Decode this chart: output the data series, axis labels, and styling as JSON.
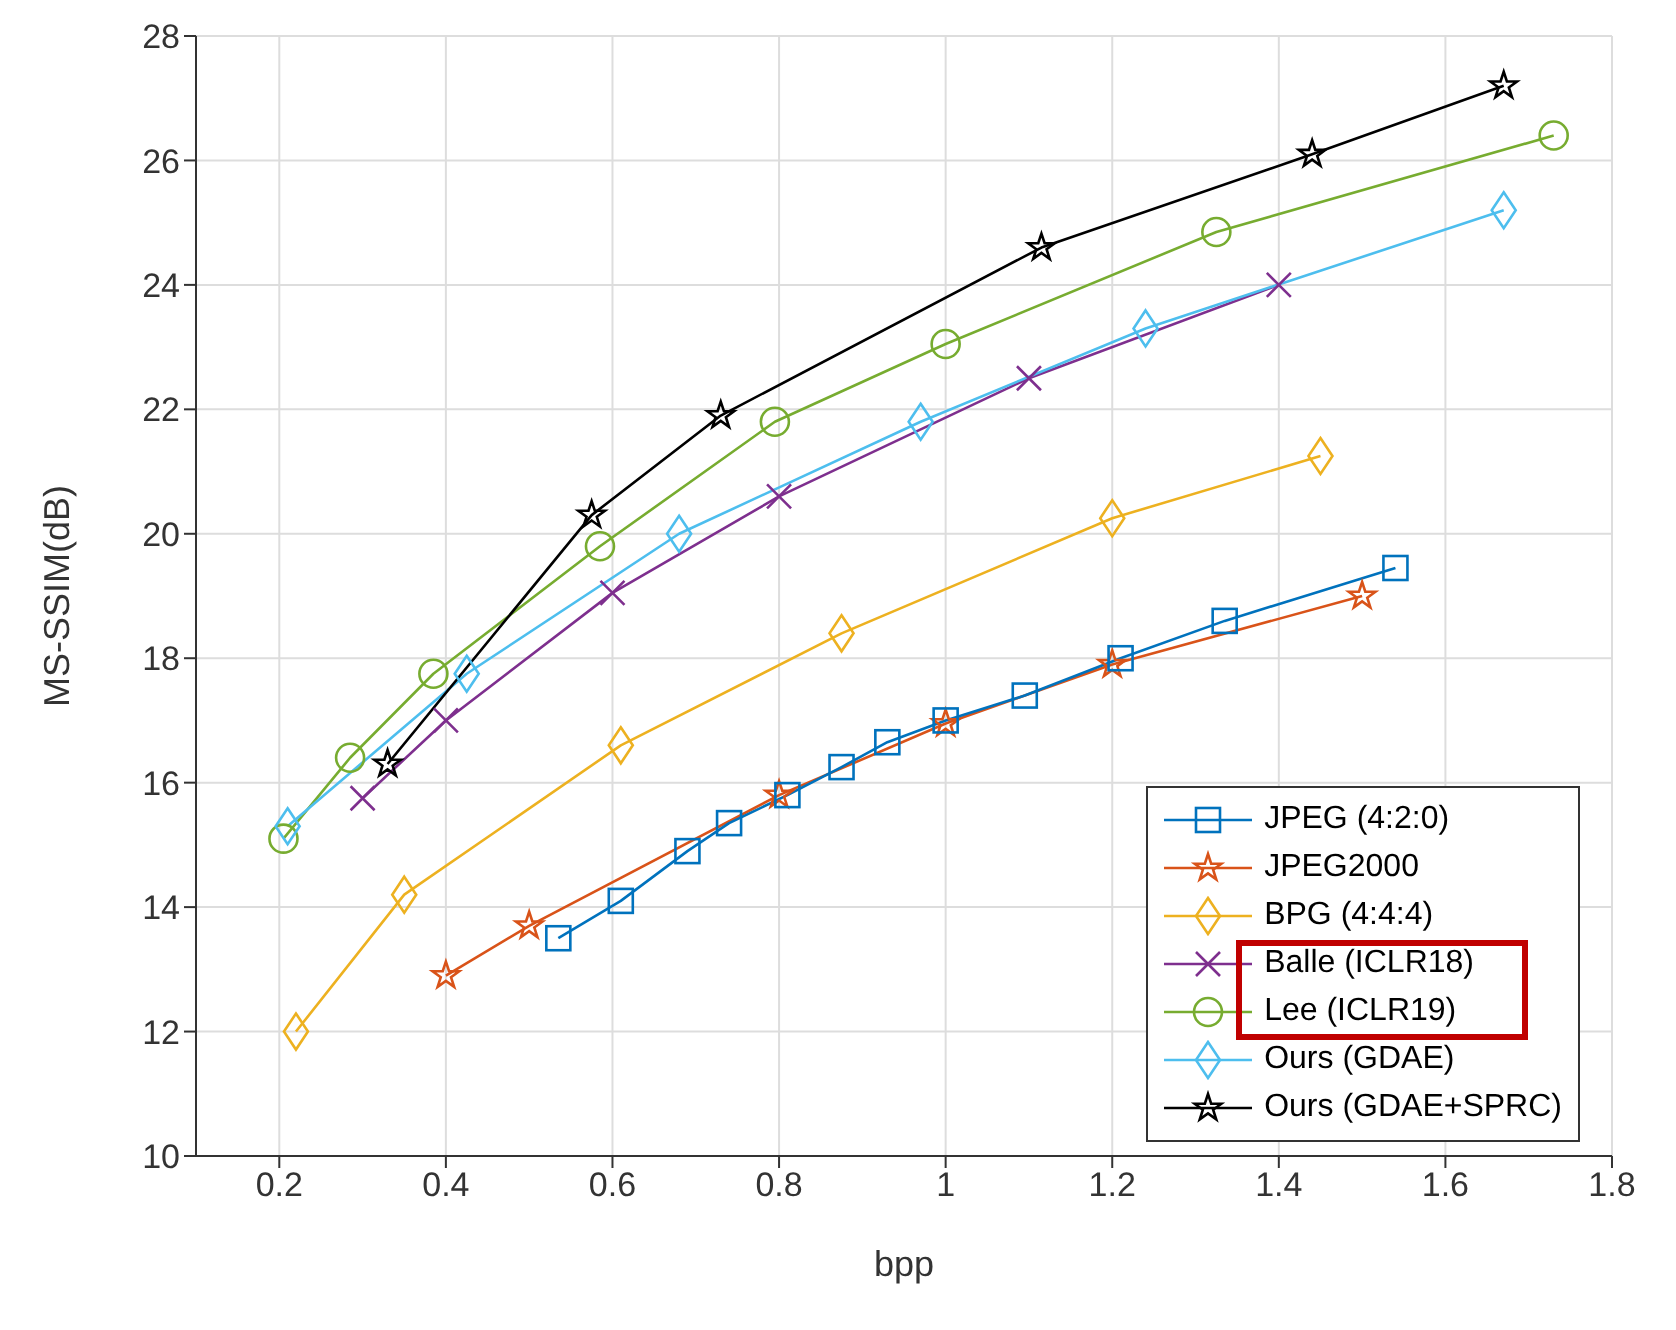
{
  "chart_data": {
    "type": "line",
    "xlabel": "bpp",
    "ylabel": "MS-SSIM(dB)",
    "xlim": [
      0.1,
      1.8
    ],
    "xticks": [
      0.2,
      0.4,
      0.6,
      0.8,
      1,
      1.2,
      1.4,
      1.6,
      1.8
    ],
    "ylim": [
      10,
      28
    ],
    "yticks": [
      10,
      12,
      14,
      16,
      18,
      20,
      22,
      24,
      26,
      28
    ],
    "grid": true,
    "legend": "bottom right",
    "line_style": "solid",
    "series": [
      {
        "name": "JPEG (4:2:0)",
        "color": "#0072bd",
        "marker": "square",
        "x": [
          0.535,
          0.61,
          0.69,
          0.74,
          0.81,
          0.875,
          0.93,
          1.0,
          1.095,
          1.21,
          1.335,
          1.54
        ],
        "values": [
          13.5,
          14.1,
          14.9,
          15.35,
          15.8,
          16.25,
          16.65,
          17.0,
          17.4,
          18.0,
          18.6,
          19.45
        ]
      },
      {
        "name": "JPEG2000",
        "color": "#d95319",
        "marker": "star",
        "x": [
          0.4,
          0.5,
          0.8,
          1.0,
          1.2,
          1.5
        ],
        "values": [
          12.9,
          13.7,
          15.8,
          16.95,
          17.9,
          19.0
        ]
      },
      {
        "name": "BPG (4:4:4)",
        "color": "#edb120",
        "marker": "diamond",
        "x": [
          0.22,
          0.35,
          0.61,
          0.875,
          1.2,
          1.45
        ],
        "values": [
          12.0,
          14.2,
          16.6,
          18.4,
          20.25,
          21.25
        ]
      },
      {
        "name": "Balle (ICLR18)",
        "color": "#7e2f8e",
        "marker": "cross",
        "x": [
          0.3,
          0.4,
          0.6,
          0.8,
          1.1,
          1.4
        ],
        "values": [
          15.75,
          17.0,
          19.05,
          20.6,
          22.5,
          24.0
        ]
      },
      {
        "name": "Lee (ICLR19)",
        "color": "#77ac30",
        "marker": "circle",
        "x": [
          0.205,
          0.285,
          0.385,
          0.585,
          0.795,
          1.0,
          1.325,
          1.73
        ],
        "values": [
          15.1,
          16.4,
          17.75,
          19.8,
          21.8,
          23.05,
          24.85,
          26.4
        ]
      },
      {
        "name": "Ours (GDAE)",
        "color": "#4dbeee",
        "marker": "diamond",
        "x": [
          0.21,
          0.425,
          0.68,
          0.97,
          1.24,
          1.67
        ],
        "values": [
          15.3,
          17.75,
          20.0,
          21.8,
          23.3,
          25.2
        ]
      },
      {
        "name": "Ours (GDAE+SPRC)",
        "color": "#000000",
        "marker": "star",
        "x": [
          0.33,
          0.575,
          0.73,
          1.115,
          1.44,
          1.67
        ],
        "values": [
          16.3,
          20.3,
          21.9,
          24.6,
          26.1,
          27.2
        ]
      }
    ]
  }
}
